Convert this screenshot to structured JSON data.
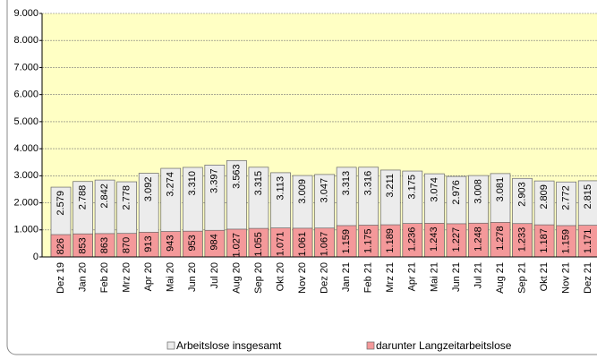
{
  "chart_data": {
    "type": "bar",
    "categories": [
      "Dez 19",
      "Jan 20",
      "Feb 20",
      "Mrz 20",
      "Apr 20",
      "Mai 20",
      "Jun 20",
      "Jul 20",
      "Aug 20",
      "Sep 20",
      "Okt 20",
      "Nov 20",
      "Dez 20",
      "Jan 21",
      "Feb 21",
      "Mrz 21",
      "Apr 21",
      "Mai 21",
      "Jun 21",
      "Jul 21",
      "Aug 21",
      "Sep 21",
      "Okt 21",
      "Nov 21",
      "Dez 21"
    ],
    "series": [
      {
        "name": "Arbeitslose insgesamt",
        "color": "#ececec",
        "values": [
          2579,
          2788,
          2842,
          2778,
          3092,
          3274,
          3310,
          3397,
          3563,
          3315,
          3113,
          3009,
          3047,
          3313,
          3316,
          3211,
          3175,
          3074,
          2976,
          3008,
          3081,
          2903,
          2809,
          2772,
          2815
        ],
        "value_labels": [
          "2.579",
          "2.788",
          "2.842",
          "2.778",
          "3.092",
          "3.274",
          "3.310",
          "3.397",
          "3.563",
          "3.315",
          "3.113",
          "3.009",
          "3.047",
          "3.313",
          "3.316",
          "3.211",
          "3.175",
          "3.074",
          "2.976",
          "3.008",
          "3.081",
          "2.903",
          "2.809",
          "2.772",
          "2.815"
        ]
      },
      {
        "name": "darunter Langzeitarbeitslose",
        "color": "#f4999a",
        "values": [
          826,
          853,
          863,
          870,
          913,
          943,
          953,
          984,
          1027,
          1055,
          1071,
          1061,
          1067,
          1159,
          1175,
          1189,
          1236,
          1243,
          1227,
          1248,
          1278,
          1233,
          1187,
          1159,
          1171
        ],
        "value_labels": [
          "826",
          "853",
          "863",
          "870",
          "913",
          "943",
          "953",
          "984",
          "1.027",
          "1.055",
          "1.071",
          "1.061",
          "1.067",
          "1.159",
          "1.175",
          "1.189",
          "1.236",
          "1.243",
          "1.227",
          "1.248",
          "1.278",
          "1.233",
          "1.187",
          "1.159",
          "1.171"
        ]
      }
    ],
    "ylim": [
      0,
      9000
    ],
    "yticks": [
      0,
      {
        "value": 1000,
        "label": "1.000"
      },
      {
        "value": 2000,
        "label": "2.000"
      },
      {
        "value": 3000,
        "label": "3.000"
      },
      {
        "value": 4000,
        "label": "4.000"
      },
      {
        "value": 5000,
        "label": "5.000"
      },
      {
        "value": 6000,
        "label": "6.000"
      },
      {
        "value": 7000,
        "label": "7.000"
      },
      {
        "value": 8000,
        "label": "8.000"
      },
      {
        "value": 9000,
        "label": "9.000"
      }
    ],
    "grid": true,
    "legend": "bottom",
    "overlap": true
  }
}
